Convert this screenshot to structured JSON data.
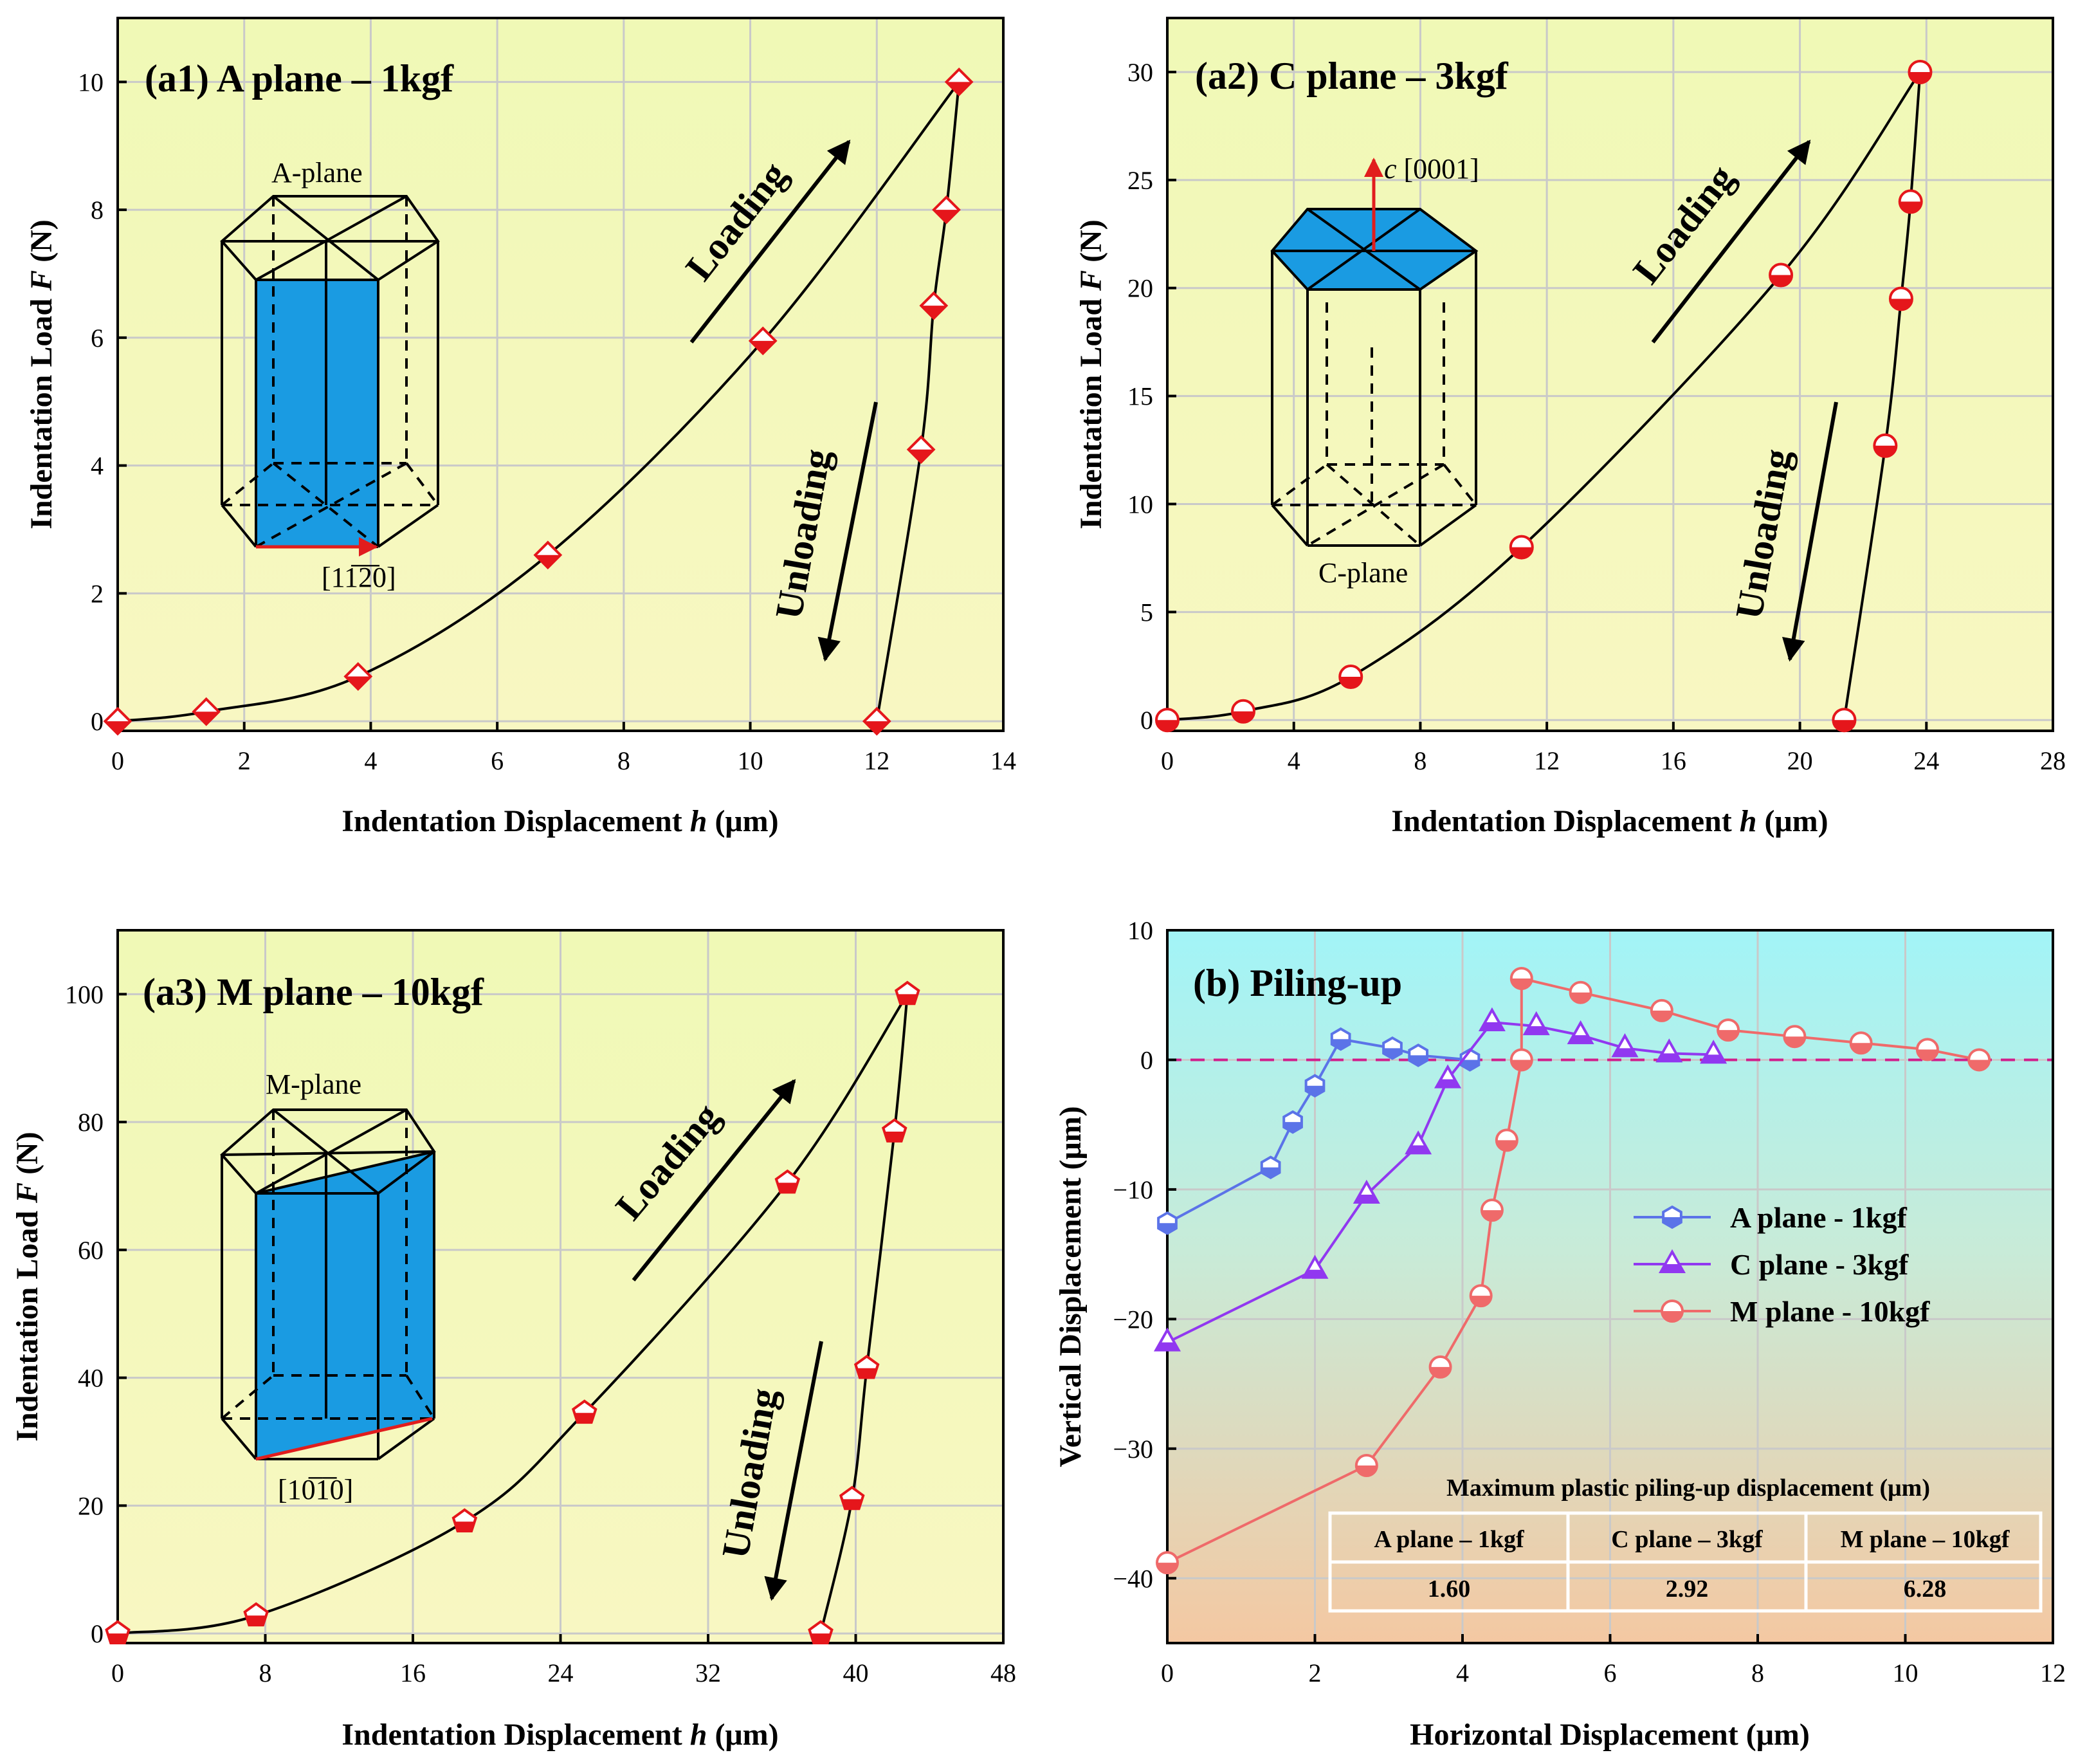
{
  "colors": {
    "panel_a_top": "#f0f9b6",
    "panel_a_bottom": "#f8f7c2",
    "panel_b_top": "#a2f4f7",
    "panel_b_mid": "#c8ebd8",
    "panel_b_bottom": "#f4c8a2",
    "marker_red": "#e5161b",
    "a_plane_blue": "#5b73e8",
    "c_plane_purple": "#9138f0",
    "m_plane_red": "#ef6a6a",
    "baseline_magenta": "#d11e8c",
    "crystal_fill": "#1a9be2",
    "red_arrow": "#e11d1d",
    "grid": "#c9c9c9"
  },
  "chart_data": [
    {
      "id": "a1",
      "type": "line",
      "title": "(a1) A plane – 1kgf",
      "xlabel_plain": "Indentation  Displacement ",
      "xlabel_italic": "h",
      "xlabel_unit": " (μm)",
      "ylabel_plain": "Indentation  Load ",
      "ylabel_italic": "F",
      "ylabel_unit": " (N)",
      "xlim": [
        0,
        14
      ],
      "ylim": [
        -0.15,
        11
      ],
      "xticks": [
        "0",
        "2",
        "4",
        "6",
        "8",
        "10",
        "12",
        "14"
      ],
      "yticks": [
        "0",
        "2",
        "4",
        "6",
        "8",
        "10"
      ],
      "marker": "diamond-half",
      "loading": [
        [
          0,
          0
        ],
        [
          1.4,
          0.15
        ],
        [
          3.8,
          0.7
        ],
        [
          6.8,
          2.6
        ],
        [
          10.2,
          5.95
        ],
        [
          13.3,
          10
        ]
      ],
      "unloading": [
        [
          13.3,
          10
        ],
        [
          13.1,
          8.0
        ],
        [
          12.9,
          6.5
        ],
        [
          12.7,
          4.25
        ],
        [
          12.0,
          0
        ]
      ],
      "labels": {
        "loading": "Loading",
        "unloading": "Unloading"
      },
      "inset": {
        "label": "A-plane",
        "direction": "[11̅2̅0]"
      }
    },
    {
      "id": "a2",
      "type": "line",
      "title": "(a2) C plane – 3kgf",
      "xlabel_plain": "Indentation Displacement ",
      "xlabel_italic": "h",
      "xlabel_unit": " (μm)",
      "ylabel_plain": "Indentation Load ",
      "ylabel_italic": "F",
      "ylabel_unit": " (N)",
      "xlim": [
        0,
        28
      ],
      "ylim": [
        -0.5,
        32.5
      ],
      "xticks": [
        "0",
        "4",
        "8",
        "12",
        "16",
        "20",
        "24",
        "28"
      ],
      "yticks": [
        "0",
        "5",
        "10",
        "15",
        "20",
        "25",
        "30"
      ],
      "marker": "circle-half",
      "loading": [
        [
          0,
          0
        ],
        [
          2.4,
          0.4
        ],
        [
          5.8,
          2.0
        ],
        [
          11.2,
          8.0
        ],
        [
          19.4,
          20.6
        ],
        [
          23.8,
          30
        ]
      ],
      "unloading": [
        [
          23.8,
          30
        ],
        [
          23.5,
          24
        ],
        [
          23.2,
          19.5
        ],
        [
          22.7,
          12.7
        ],
        [
          21.4,
          0
        ]
      ],
      "labels": {
        "loading": "Loading",
        "unloading": "Unloading"
      },
      "inset": {
        "label": "C-plane",
        "direction_italic": "c",
        "direction": " [0001]"
      }
    },
    {
      "id": "a3",
      "type": "line",
      "title": "(a3) M plane – 10kgf",
      "xlabel_plain": "Indentation Displacement ",
      "xlabel_italic": "h",
      "xlabel_unit": " (μm)",
      "ylabel_plain": "Indentation Load ",
      "ylabel_italic": "F",
      "ylabel_unit": " (N)",
      "xlim": [
        0,
        48
      ],
      "ylim": [
        -1.5,
        110
      ],
      "xticks": [
        "0",
        "8",
        "16",
        "24",
        "32",
        "40",
        "48"
      ],
      "yticks": [
        "0",
        "20",
        "40",
        "60",
        "80",
        "100"
      ],
      "marker": "pentagon-half",
      "loading": [
        [
          0,
          0
        ],
        [
          7.5,
          2.8
        ],
        [
          18.8,
          17.5
        ],
        [
          25.3,
          34.5
        ],
        [
          36.3,
          70.5
        ],
        [
          42.8,
          100
        ]
      ],
      "unloading": [
        [
          42.8,
          100
        ],
        [
          42.1,
          78.5
        ],
        [
          40.6,
          41.5
        ],
        [
          39.8,
          21
        ],
        [
          38.1,
          0
        ]
      ],
      "labels": {
        "loading": "Loading",
        "unloading": "Unloading"
      },
      "inset": {
        "label": "M-plane",
        "direction": "[10̅1̅0]"
      }
    },
    {
      "id": "b",
      "type": "line",
      "title": "(b) Piling-up",
      "xlabel": "Horizontal Displacement (μm)",
      "ylabel": "Vertical Displacement (μm)",
      "xlim": [
        0,
        12
      ],
      "ylim": [
        -45,
        10
      ],
      "xticks": [
        "0",
        "2",
        "4",
        "6",
        "8",
        "10",
        "12"
      ],
      "yticks": [
        "10",
        "0",
        "−10",
        "−20",
        "−30",
        "−40"
      ],
      "series": [
        {
          "name": "A plane - 1kgf",
          "marker": "hexagon-half",
          "color": "#5b73e8",
          "points": [
            [
              0,
              -12.6
            ],
            [
              1.4,
              -8.3
            ],
            [
              1.7,
              -4.8
            ],
            [
              2.0,
              -2.0
            ],
            [
              2.35,
              1.6
            ],
            [
              3.05,
              0.9
            ],
            [
              3.4,
              0.35
            ],
            [
              4.1,
              0.0
            ]
          ]
        },
        {
          "name": "C plane - 3kgf",
          "marker": "triangle-half",
          "color": "#9138f0",
          "points": [
            [
              0,
              -21.8
            ],
            [
              2.0,
              -16.2
            ],
            [
              2.7,
              -10.4
            ],
            [
              3.4,
              -6.6
            ],
            [
              3.8,
              -1.5
            ],
            [
              4.4,
              2.9
            ],
            [
              5.0,
              2.6
            ],
            [
              5.6,
              1.9
            ],
            [
              6.2,
              0.9
            ],
            [
              6.8,
              0.5
            ],
            [
              7.4,
              0.4
            ]
          ]
        },
        {
          "name": "M plane - 10kgf",
          "marker": "circle-half",
          "color": "#ef6a6a",
          "points": [
            [
              0,
              -38.8
            ],
            [
              2.7,
              -31.3
            ],
            [
              3.7,
              -23.7
            ],
            [
              4.25,
              -18.2
            ],
            [
              4.4,
              -11.6
            ],
            [
              4.6,
              -6.2
            ],
            [
              4.8,
              0.0
            ],
            [
              4.8,
              6.28
            ],
            [
              5.6,
              5.2
            ],
            [
              6.7,
              3.8
            ],
            [
              7.6,
              2.3
            ],
            [
              8.5,
              1.8
            ],
            [
              9.4,
              1.3
            ],
            [
              10.3,
              0.8
            ],
            [
              11.0,
              0.0
            ]
          ]
        }
      ],
      "table": {
        "title": "Maximum plastic piling-up displacement (μm)",
        "headers": [
          "A plane – 1kgf",
          "C plane – 3kgf",
          "M plane – 10kgf"
        ],
        "values": [
          "1.60",
          "2.92",
          "6.28"
        ]
      }
    }
  ]
}
